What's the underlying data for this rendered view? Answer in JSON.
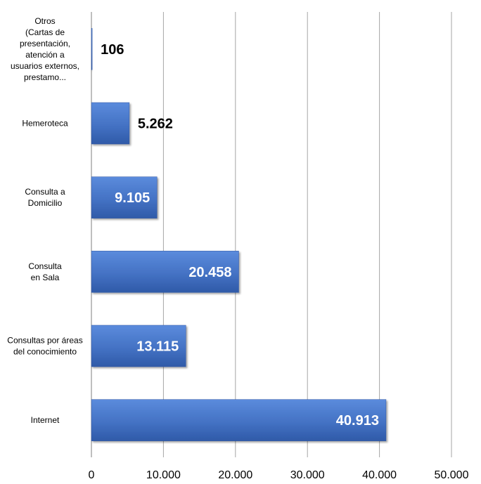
{
  "chart_data": {
    "type": "bar",
    "orientation": "horizontal",
    "categories": [
      [
        "Otros",
        "(Cartas de",
        "presentación,",
        "atención a",
        "usuarios externos,",
        "prestamo..."
      ],
      [
        "Hemeroteca"
      ],
      [
        "Consulta a",
        "Domicilio"
      ],
      [
        "Consulta",
        "en Sala"
      ],
      [
        "Consultas por áreas",
        "del conocimiento"
      ],
      [
        "Internet"
      ]
    ],
    "values": [
      106,
      5262,
      9105,
      20458,
      13115,
      40913
    ],
    "data_labels": [
      "106",
      "5.262",
      "9.105",
      "20.458",
      "13.115",
      "40.913"
    ],
    "xticks": [
      0,
      10000,
      20000,
      30000,
      40000,
      50000
    ],
    "xtick_labels": [
      "0",
      "10.000",
      "20.000",
      "30.000",
      "40.000",
      "50.000"
    ],
    "xlim": [
      0,
      50000
    ],
    "grid": true,
    "legend": "none",
    "bar_color": "#4472c4",
    "bar_color_dark": "#2e55a3",
    "title": "",
    "xlabel": "",
    "ylabel": ""
  }
}
